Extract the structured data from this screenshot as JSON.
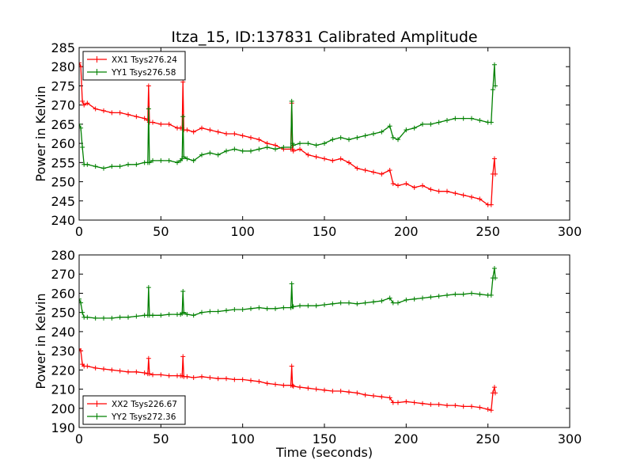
{
  "title": "Itza_15, ID:137831 Calibrated Amplitude",
  "chart_data": [
    {
      "type": "line",
      "xlabel": "",
      "ylabel": "Power in Kelvin",
      "xlim": [
        0,
        300
      ],
      "ylim": [
        240,
        285
      ],
      "xticks": [
        0,
        50,
        100,
        150,
        200,
        250,
        300
      ],
      "yticks": [
        240,
        245,
        250,
        255,
        260,
        265,
        270,
        275,
        280,
        285
      ],
      "grid": false,
      "legend_position": "top-left",
      "series": [
        {
          "name": "XX1 Tsys276.24",
          "color": "#ff0000",
          "x": [
            0,
            1,
            2,
            3,
            5,
            10,
            15,
            20,
            25,
            30,
            35,
            40,
            42,
            42.5,
            43,
            45,
            50,
            55,
            60,
            62,
            63,
            63.5,
            64,
            66,
            70,
            75,
            80,
            85,
            90,
            95,
            100,
            105,
            110,
            115,
            120,
            125,
            129.5,
            130,
            130.5,
            131,
            135,
            140,
            145,
            150,
            155,
            160,
            165,
            170,
            175,
            180,
            185,
            190,
            192,
            195,
            200,
            205,
            210,
            215,
            220,
            225,
            230,
            235,
            240,
            245,
            250,
            252,
            253,
            254,
            254.5
          ],
          "y": [
            281,
            280,
            271,
            270,
            270.5,
            269,
            268.5,
            268,
            268,
            267.5,
            267,
            266.5,
            266,
            275,
            265.5,
            265.5,
            265,
            265,
            264,
            264,
            264,
            276,
            263.5,
            263.5,
            263,
            264,
            263.5,
            263,
            262.5,
            262.5,
            262,
            261.5,
            261,
            260,
            259.5,
            258.5,
            258.5,
            270.5,
            258.5,
            258,
            258.5,
            257,
            256.5,
            256,
            255.5,
            256,
            255,
            253.5,
            253,
            252.5,
            252,
            253,
            249.5,
            249,
            249.5,
            248.5,
            249,
            248,
            247.5,
            247.5,
            247,
            246.5,
            246,
            245.5,
            244,
            244,
            252,
            256,
            252
          ]
        },
        {
          "name": "YY1 Tsys276.58",
          "color": "#008000",
          "x": [
            0,
            1,
            2,
            3,
            5,
            10,
            15,
            20,
            25,
            30,
            35,
            40,
            42,
            42.5,
            43,
            45,
            50,
            55,
            60,
            62,
            63,
            63.5,
            64,
            66,
            70,
            75,
            80,
            85,
            90,
            95,
            100,
            105,
            110,
            115,
            120,
            125,
            129.5,
            130,
            130.5,
            131,
            135,
            140,
            145,
            150,
            155,
            160,
            165,
            170,
            175,
            180,
            185,
            190,
            192,
            195,
            200,
            205,
            210,
            215,
            220,
            225,
            230,
            235,
            240,
            245,
            250,
            252,
            253,
            254,
            254.5
          ],
          "y": [
            265,
            264,
            259,
            254.5,
            254.5,
            254,
            253.5,
            254,
            254,
            254.5,
            254.5,
            255,
            255,
            269,
            255,
            255.5,
            255.5,
            255.5,
            255,
            255.5,
            256,
            267,
            256.5,
            256,
            255.5,
            257,
            257.5,
            257,
            258,
            258.5,
            258,
            258,
            258.5,
            259,
            258.5,
            259,
            259,
            271,
            260,
            259.5,
            260,
            260,
            259.5,
            260,
            261,
            261.5,
            261,
            261.5,
            262,
            262.5,
            263,
            264.5,
            261.5,
            261,
            263.5,
            264,
            265,
            265,
            265.5,
            266,
            266.5,
            266.5,
            266.5,
            266,
            265.5,
            265.5,
            274,
            280.5,
            275
          ]
        }
      ]
    },
    {
      "type": "line",
      "xlabel": "Time (seconds)",
      "ylabel": "Power in Kelvin",
      "xlim": [
        0,
        300
      ],
      "ylim": [
        190,
        280
      ],
      "xticks": [
        0,
        50,
        100,
        150,
        200,
        250,
        300
      ],
      "yticks": [
        190,
        200,
        210,
        220,
        230,
        240,
        250,
        260,
        270,
        280
      ],
      "grid": false,
      "legend_position": "bottom-left",
      "series": [
        {
          "name": "XX2 Tsys226.67",
          "color": "#ff0000",
          "x": [
            0,
            1,
            2,
            3,
            5,
            10,
            15,
            20,
            25,
            30,
            35,
            40,
            42,
            42.5,
            43,
            45,
            50,
            55,
            60,
            62,
            63,
            63.5,
            64,
            66,
            70,
            75,
            80,
            85,
            90,
            95,
            100,
            105,
            110,
            115,
            120,
            125,
            129.5,
            130,
            130.5,
            131,
            135,
            140,
            145,
            150,
            155,
            160,
            165,
            170,
            175,
            180,
            185,
            190,
            192,
            195,
            200,
            205,
            210,
            215,
            220,
            225,
            230,
            235,
            240,
            245,
            250,
            252,
            253,
            254,
            254.5
          ],
          "y": [
            231,
            230,
            223,
            222,
            222,
            221,
            220.5,
            220,
            219.5,
            219,
            219,
            218.5,
            218,
            226,
            218,
            217.5,
            217.5,
            217,
            217,
            217,
            217,
            227,
            216.5,
            216.5,
            216,
            216.5,
            216,
            215.5,
            215.5,
            215,
            215,
            214.5,
            214,
            213,
            212.5,
            212,
            212,
            222,
            212,
            211.5,
            211,
            210.5,
            210,
            209.5,
            209,
            209,
            208.5,
            208,
            207,
            206.5,
            206,
            205.5,
            203,
            203,
            203.5,
            203,
            202.5,
            202,
            202,
            201.5,
            201.5,
            201,
            201,
            200.5,
            199.5,
            199,
            208,
            211,
            208
          ]
        },
        {
          "name": "YY2 Tsys272.36",
          "color": "#008000",
          "x": [
            0,
            1,
            2,
            3,
            5,
            10,
            15,
            20,
            25,
            30,
            35,
            40,
            42,
            42.5,
            43,
            45,
            50,
            55,
            60,
            62,
            63,
            63.5,
            64,
            66,
            70,
            75,
            80,
            85,
            90,
            95,
            100,
            105,
            110,
            115,
            120,
            125,
            129.5,
            130,
            130.5,
            131,
            135,
            140,
            145,
            150,
            155,
            160,
            165,
            170,
            175,
            180,
            185,
            190,
            192,
            195,
            200,
            205,
            210,
            215,
            220,
            225,
            230,
            235,
            240,
            245,
            250,
            252,
            253,
            254,
            254.5
          ],
          "y": [
            257,
            255,
            250,
            247.5,
            247.5,
            247,
            247,
            247,
            247.5,
            247.5,
            248,
            248.5,
            248.5,
            263,
            248.5,
            248.5,
            248.5,
            249,
            249,
            249,
            249.5,
            261,
            250,
            249,
            248.5,
            250,
            250.5,
            250.5,
            251,
            251.5,
            251.5,
            252,
            252.5,
            252,
            252,
            252.5,
            252.5,
            265,
            253,
            253,
            253.5,
            253.5,
            253.5,
            254,
            254.5,
            255,
            255,
            254.5,
            255,
            255.5,
            256,
            257.5,
            255,
            255,
            256.5,
            257,
            257.5,
            258,
            258.5,
            259,
            259.5,
            259.5,
            260,
            259.5,
            259,
            259,
            268,
            273,
            268
          ]
        }
      ]
    }
  ]
}
